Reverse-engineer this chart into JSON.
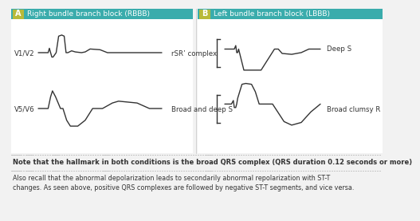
{
  "bg_color": "#f2f2f2",
  "teal_color": "#3aacac",
  "olive_color": "#b8ba3a",
  "panel_a_title": "Right bundle branch block (RBBB)",
  "panel_b_title": "Left bundle branch block (LBBB)",
  "label_a": "A",
  "label_b": "B",
  "v1v2_label": "V1/V2",
  "v5v6_label": "V5/V6",
  "rbbb_v1_label": "rSR’ complex",
  "rbbb_v5_label": "Broad and deep S",
  "lbbb_v1_label": "Deep S",
  "lbbb_v5_label": "Broad clumsy R",
  "note1": "Note that the hallmark in both conditions is the broad QRS complex (QRS duration 0.12 seconds or more)",
  "note2": "Also recall that the abnormal depolarization leads to secondarily abnormal repolarization with ST-T\nchanges. As seen above, positive QRS complexes are followed by negative ST-T segments, and vice versa.",
  "line_color": "#333333",
  "text_color": "#333333",
  "note_color": "#333333",
  "header_text_color": "#ffffff",
  "title_fontsize": 6.5,
  "label_fontsize": 6.2,
  "note_fontsize": 5.8,
  "note1_fontsize": 6.0
}
